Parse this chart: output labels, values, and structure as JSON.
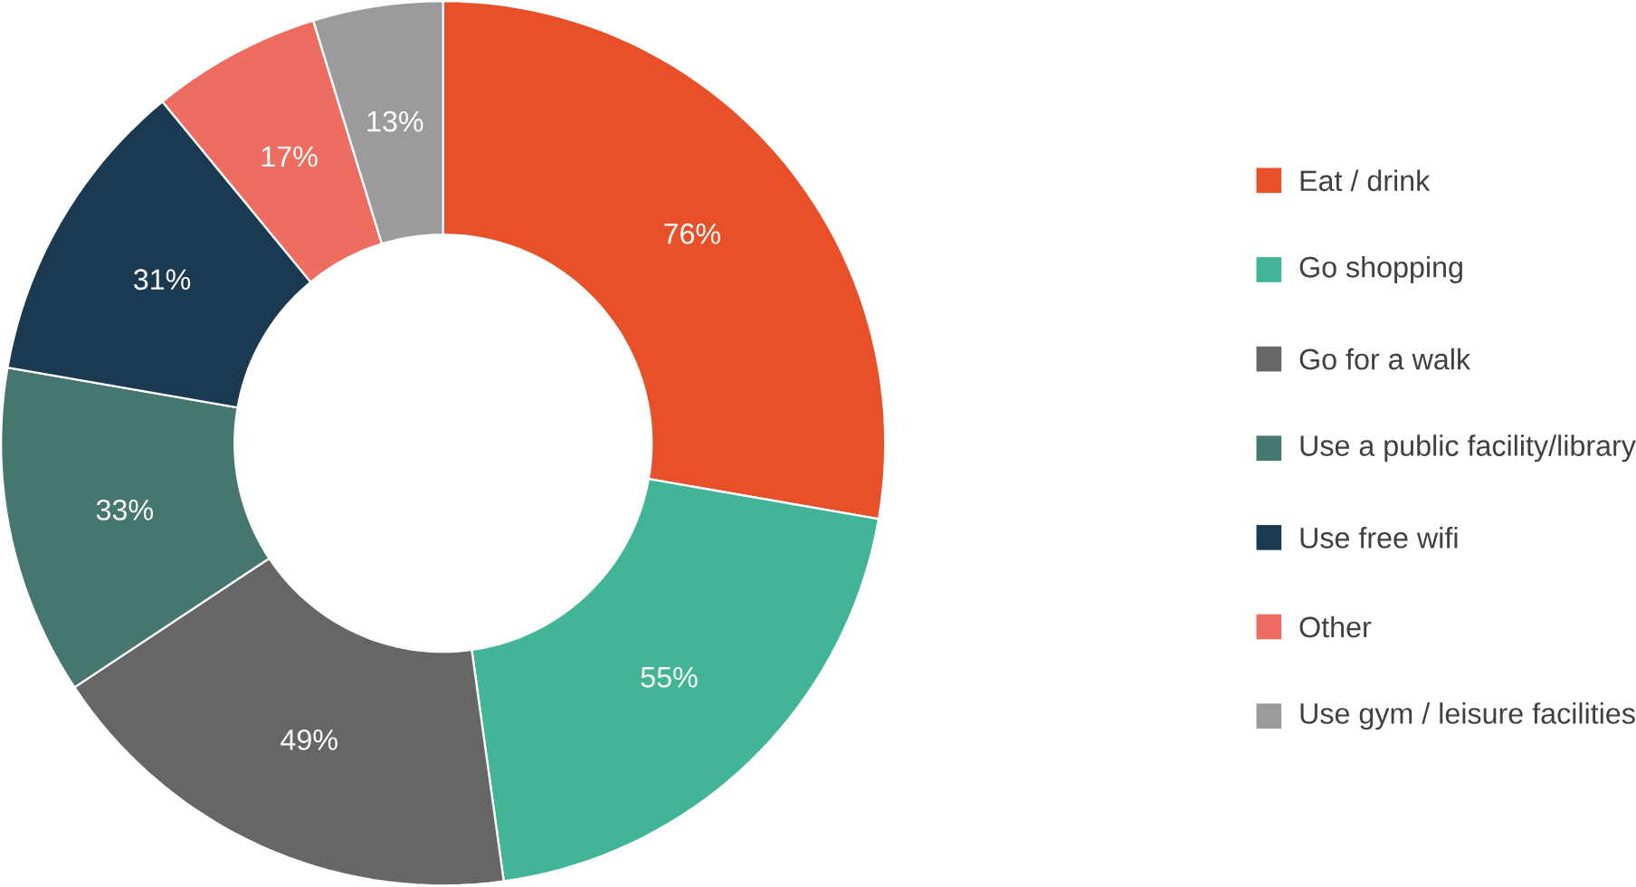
{
  "chart_data": {
    "type": "donut",
    "categories": [
      "Eat / drink",
      "Go shopping",
      "Go for a walk",
      "Use a public facility/library",
      "Use free wifi",
      "Other",
      "Use gym / leisure facilities"
    ],
    "values": [
      76,
      55,
      49,
      33,
      31,
      17,
      13
    ],
    "colors": [
      "#e8502a",
      "#42b596",
      "#666666",
      "#45776f",
      "#1b3a52",
      "#ef6c60",
      "#9b9b9b"
    ],
    "value_labels": [
      "76%",
      "55%",
      "49%",
      "33%",
      "31%",
      "17%",
      "13%"
    ],
    "legend": "right"
  }
}
